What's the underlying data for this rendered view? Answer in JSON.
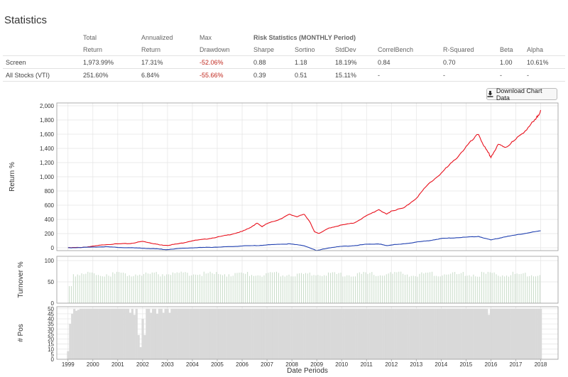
{
  "page_title": "Statistics",
  "stats": {
    "headers_top": [
      "",
      "Total",
      "Annualized",
      "Max",
      "Risk Statistics (MONTHLY Period)",
      "",
      "",
      "",
      "",
      "",
      ""
    ],
    "headers_bottom": [
      "",
      "Return",
      "Return",
      "Drawdown",
      "Sharpe",
      "Sortino",
      "StdDev",
      "CorrelBench",
      "R-Squared",
      "Beta",
      "Alpha"
    ],
    "rows": [
      {
        "name": "Screen",
        "total_return": "1,973.99%",
        "annualized_return": "17.31%",
        "max_drawdown": "-52.06%",
        "sharpe": "0.88",
        "sortino": "1.18",
        "stddev": "18.19%",
        "correl": "0.84",
        "rsq": "0.70",
        "beta": "1.00",
        "alpha": "10.61%"
      },
      {
        "name": "All Stocks (VTI)",
        "total_return": "251.60%",
        "annualized_return": "6.84%",
        "max_drawdown": "-55.66%",
        "sharpe": "0.39",
        "sortino": "0.51",
        "stddev": "15.11%",
        "correl": "-",
        "rsq": "-",
        "beta": "-",
        "alpha": "-"
      }
    ]
  },
  "download_button": {
    "label": "Download Chart Data",
    "icon": "download-icon"
  },
  "chart_data": [
    {
      "type": "line",
      "ylabel": "Return %",
      "ylim": [
        -40,
        2040
      ],
      "yticks": [
        "0",
        "200",
        "400",
        "600",
        "800",
        "1,000",
        "1,200",
        "1,400",
        "1,600",
        "1,800",
        "2,000"
      ],
      "grid": true,
      "series": [
        {
          "color": "#e8101c",
          "points": [
            [
              1999.0,
              0
            ],
            [
              1999.5,
              5
            ],
            [
              2000.0,
              20
            ],
            [
              2000.5,
              45
            ],
            [
              2001.0,
              55
            ],
            [
              2001.5,
              60
            ],
            [
              2002.0,
              90
            ],
            [
              2002.3,
              70
            ],
            [
              2002.7,
              40
            ],
            [
              2003.0,
              35
            ],
            [
              2003.5,
              60
            ],
            [
              2004.0,
              100
            ],
            [
              2004.5,
              120
            ],
            [
              2005.0,
              150
            ],
            [
              2005.5,
              185
            ],
            [
              2006.0,
              230
            ],
            [
              2006.3,
              280
            ],
            [
              2006.6,
              345
            ],
            [
              2006.8,
              300
            ],
            [
              2007.0,
              340
            ],
            [
              2007.5,
              400
            ],
            [
              2007.9,
              470
            ],
            [
              2008.2,
              440
            ],
            [
              2008.5,
              470
            ],
            [
              2008.7,
              380
            ],
            [
              2008.9,
              230
            ],
            [
              2009.1,
              200
            ],
            [
              2009.5,
              280
            ],
            [
              2010.0,
              320
            ],
            [
              2010.5,
              350
            ],
            [
              2011.0,
              450
            ],
            [
              2011.5,
              540
            ],
            [
              2011.8,
              470
            ],
            [
              2012.0,
              520
            ],
            [
              2012.5,
              560
            ],
            [
              2013.0,
              700
            ],
            [
              2013.5,
              900
            ],
            [
              2014.0,
              1050
            ],
            [
              2014.5,
              1220
            ],
            [
              2015.0,
              1420
            ],
            [
              2015.5,
              1600
            ],
            [
              2015.8,
              1380
            ],
            [
              2016.0,
              1280
            ],
            [
              2016.3,
              1450
            ],
            [
              2016.6,
              1420
            ],
            [
              2017.0,
              1520
            ],
            [
              2017.5,
              1700
            ],
            [
              2017.8,
              1800
            ],
            [
              2018.0,
              1940
            ]
          ]
        },
        {
          "color": "#2040b0",
          "points": [
            [
              1999.0,
              0
            ],
            [
              1999.5,
              5
            ],
            [
              2000.0,
              10
            ],
            [
              2000.5,
              15
            ],
            [
              2001.0,
              5
            ],
            [
              2001.5,
              0
            ],
            [
              2002.0,
              -5
            ],
            [
              2002.5,
              -15
            ],
            [
              2003.0,
              -25
            ],
            [
              2003.5,
              -10
            ],
            [
              2004.0,
              0
            ],
            [
              2004.5,
              5
            ],
            [
              2005.0,
              10
            ],
            [
              2005.5,
              15
            ],
            [
              2006.0,
              25
            ],
            [
              2006.5,
              30
            ],
            [
              2007.0,
              40
            ],
            [
              2007.5,
              50
            ],
            [
              2007.9,
              55
            ],
            [
              2008.5,
              30
            ],
            [
              2009.0,
              -40
            ],
            [
              2009.5,
              0
            ],
            [
              2010.0,
              20
            ],
            [
              2010.5,
              30
            ],
            [
              2011.0,
              50
            ],
            [
              2011.5,
              55
            ],
            [
              2011.8,
              30
            ],
            [
              2012.0,
              40
            ],
            [
              2012.5,
              55
            ],
            [
              2013.0,
              80
            ],
            [
              2013.5,
              100
            ],
            [
              2014.0,
              130
            ],
            [
              2014.5,
              140
            ],
            [
              2015.0,
              150
            ],
            [
              2015.5,
              160
            ],
            [
              2016.0,
              110
            ],
            [
              2016.5,
              150
            ],
            [
              2017.0,
              180
            ],
            [
              2017.5,
              210
            ],
            [
              2018.0,
              240
            ]
          ]
        }
      ]
    },
    {
      "type": "bar",
      "ylabel": "Turnover %",
      "ylim": [
        0,
        110
      ],
      "yticks": [
        "0",
        "50",
        "100"
      ],
      "typical_value": 68,
      "color": "#c8dcc8"
    },
    {
      "type": "bar",
      "ylabel": "# Pos",
      "ylim": [
        0,
        52
      ],
      "yticks": [
        "0",
        "5",
        "10",
        "15",
        "20",
        "25",
        "30",
        "35",
        "40",
        "45",
        "50"
      ],
      "color": "#d9d9d9",
      "typical_value": 50,
      "exceptions": [
        [
          1999.0,
          8
        ],
        [
          1999.1,
          35
        ],
        [
          1999.2,
          45
        ],
        [
          1999.3,
          48
        ],
        [
          1999.4,
          49
        ],
        [
          2001.5,
          46
        ],
        [
          2001.7,
          44
        ],
        [
          2001.8,
          24
        ],
        [
          2001.9,
          12
        ],
        [
          2002.0,
          40
        ],
        [
          2002.1,
          24
        ],
        [
          2002.3,
          46
        ],
        [
          2002.6,
          45
        ],
        [
          2002.8,
          46
        ],
        [
          2003.1,
          46
        ],
        [
          2015.9,
          44
        ]
      ]
    }
  ],
  "x_axis": {
    "title": "Date Periods",
    "labels": [
      "1999",
      "2000",
      "2001",
      "2002",
      "2003",
      "2004",
      "2005",
      "2006",
      "2007",
      "2008",
      "2009",
      "2010",
      "2011",
      "2012",
      "2013",
      "2014",
      "2015",
      "2016",
      "2017",
      "2018"
    ]
  }
}
